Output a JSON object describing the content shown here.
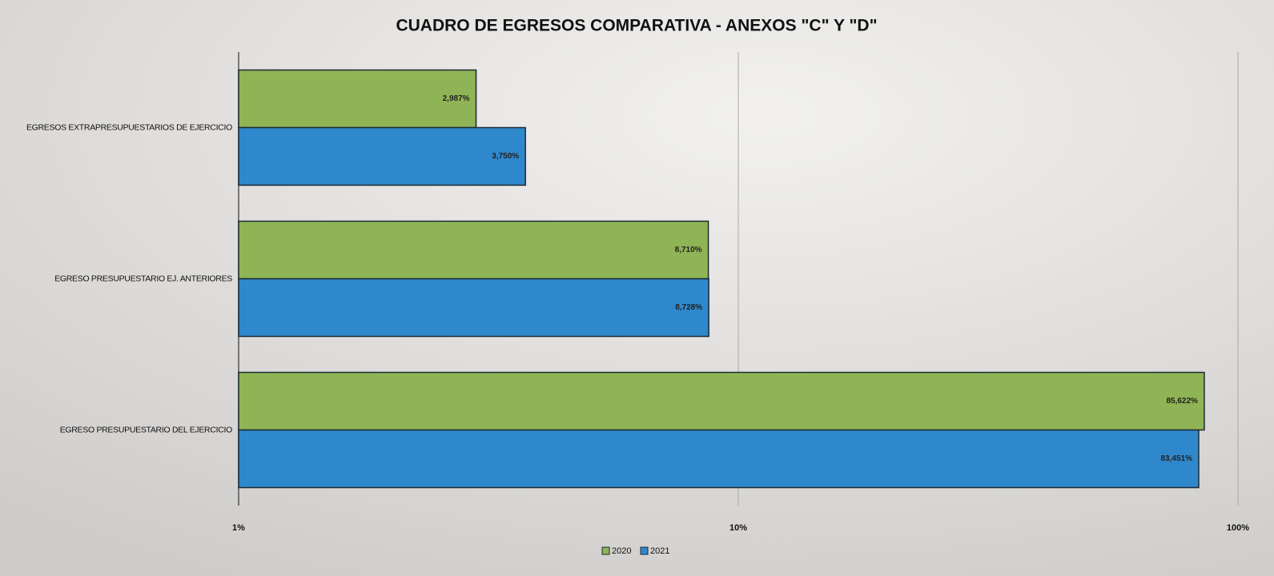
{
  "chart_data": {
    "type": "bar",
    "orientation": "horizontal",
    "title": "CUADRO DE EGRESOS COMPARATIVA - ANEXOS \"C\" Y \"D\"",
    "categories": [
      "EGRESOS EXTRAPRESUPUESTARIOS DE EJERCICIO",
      "EGRESO PRESUPUESTARIO EJ. ANTERIORES",
      "EGRESO PRESUPUESTARIO DEL EJERCICIO"
    ],
    "series": [
      {
        "name": "2020",
        "color": "#8fb455",
        "values": [
          2.987,
          8.71,
          85.622
        ],
        "value_labels": [
          "2,987%",
          "8,710%",
          "85,622%"
        ]
      },
      {
        "name": "2021",
        "color": "#2f88cc",
        "values": [
          3.75,
          8.728,
          83.451
        ],
        "value_labels": [
          "3,750%",
          "8,728%",
          "83,451%"
        ]
      }
    ],
    "xlim": [
      1,
      100
    ],
    "log_scale": true,
    "xticks": [
      {
        "value": 1,
        "label": "1%"
      },
      {
        "value": 10,
        "label": "10%"
      },
      {
        "value": 100,
        "label": "100%"
      }
    ],
    "grid": true,
    "legend": "bottom"
  }
}
